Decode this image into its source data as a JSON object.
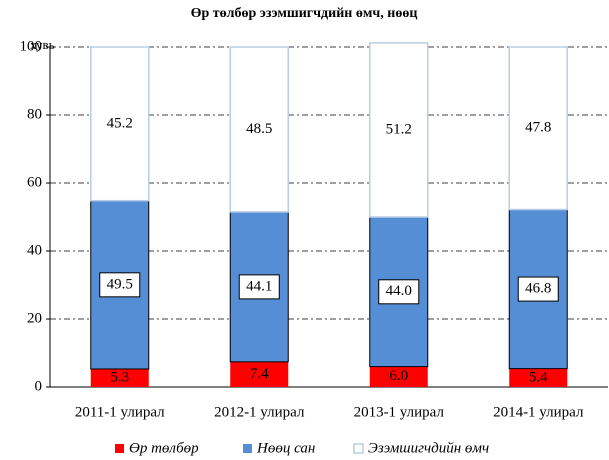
{
  "chart_data": {
    "type": "stacked_bar",
    "title": "Өр төлбөр эзэмшигчдийн өмч, нөөц",
    "y_label": "хувь",
    "categories": [
      "2011-1 улирал",
      "2012-1 улирал",
      "2013-1 улирал",
      "2014-1 улирал"
    ],
    "series": [
      {
        "name": "Өр төлбөр",
        "color": "#ff0000",
        "values": [
          5.3,
          7.4,
          6.0,
          5.4
        ],
        "value_labels": [
          "5.3",
          "7.4",
          "6.0",
          "5.4"
        ]
      },
      {
        "name": "Нөөц сан",
        "color": "#558ed5",
        "values": [
          49.5,
          44.1,
          44.0,
          46.8
        ],
        "value_labels": [
          "49.5",
          "44.1",
          "44.0",
          "46.8"
        ]
      },
      {
        "name": "Эзэмшигчдийн өмч",
        "color": "#ffffff",
        "values": [
          45.2,
          48.5,
          51.2,
          47.8
        ],
        "value_labels": [
          "45.2",
          "48.5",
          "51.2",
          "47.8"
        ]
      }
    ],
    "ylim": [
      0,
      100
    ],
    "yticks": [
      0,
      20,
      40,
      60,
      80,
      100
    ],
    "grid": true,
    "legend": "bottom"
  }
}
